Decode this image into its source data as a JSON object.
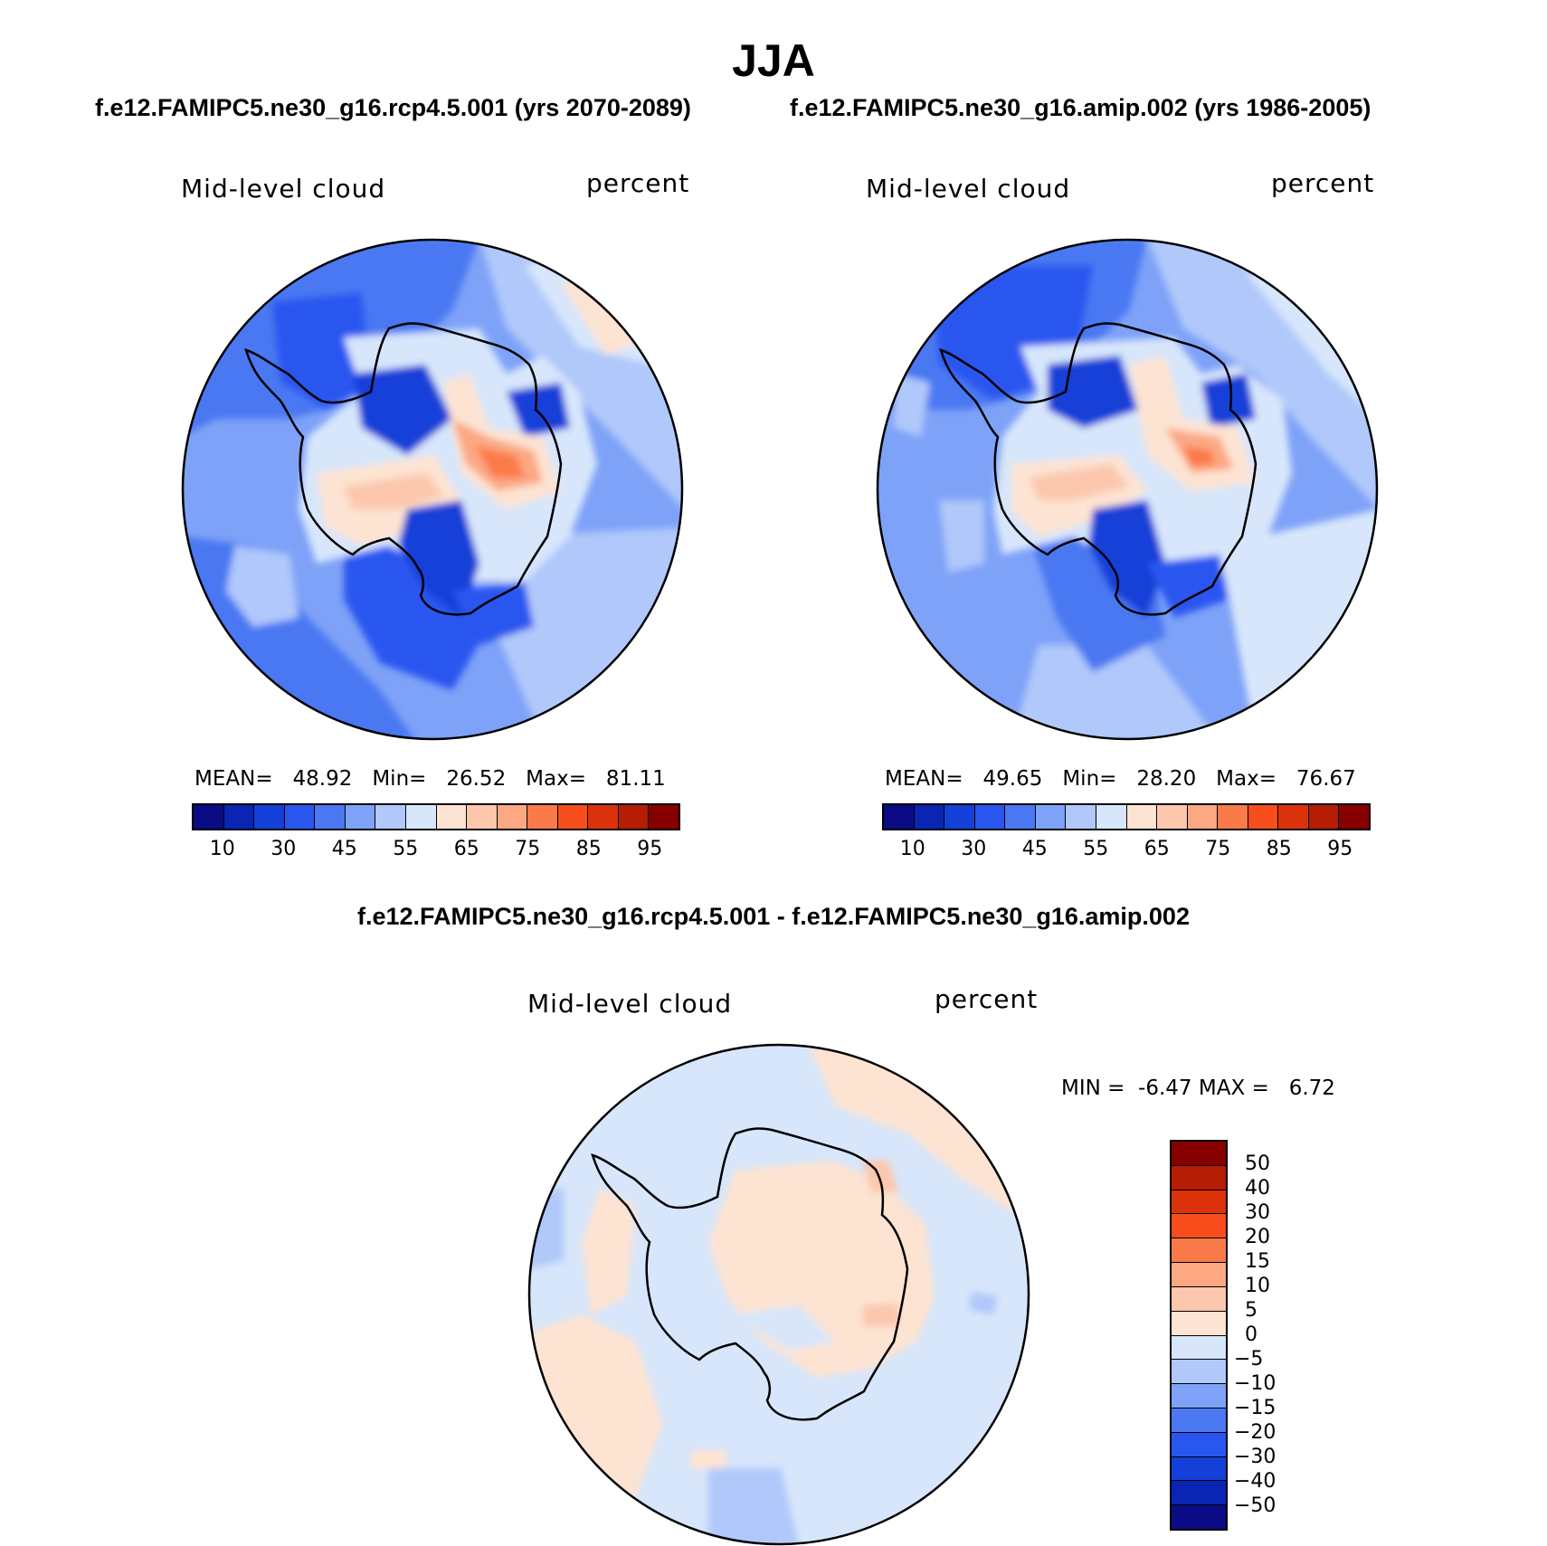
{
  "title": "JJA",
  "panels": {
    "left": {
      "case_title": "f.e12.FAMIPC5.ne30_g16.rcp4.5.001 (yrs 2070-2089)",
      "variable": "Mid-level cloud",
      "units": "percent",
      "stats": {
        "mean_label": "MEAN=",
        "mean": "48.92",
        "min_label": "Min=",
        "min": "26.52",
        "max_label": "Max=",
        "max": "81.11"
      }
    },
    "right": {
      "case_title": "f.e12.FAMIPC5.ne30_g16.amip.002 (yrs 1986-2005)",
      "variable": "Mid-level cloud",
      "units": "percent",
      "stats": {
        "mean_label": "MEAN=",
        "mean": "49.65",
        "min_label": "Min=",
        "min": "28.20",
        "max_label": "Max=",
        "max": "76.67"
      }
    },
    "diff": {
      "case_title": "f.e12.FAMIPC5.ne30_g16.rcp4.5.001 - f.e12.FAMIPC5.ne30_g16.amip.002",
      "variable": "Mid-level cloud",
      "units": "percent",
      "stats": {
        "min_label": "MIN =",
        "min": "-6.47",
        "max_label": "MAX =",
        "max": "6.72"
      }
    }
  },
  "colorbar_main": {
    "colors": [
      "#0b0b85",
      "#0a24b4",
      "#1240d8",
      "#2a56f0",
      "#4a78f2",
      "#7ea2f8",
      "#b0c8fa",
      "#d7e6fb",
      "#fde3d2",
      "#fcc7ad",
      "#fba883",
      "#fb7a4a",
      "#f84d1d",
      "#dc320c",
      "#b61d05",
      "#870000"
    ],
    "tick_labels": [
      "10",
      "30",
      "45",
      "55",
      "65",
      "75",
      "85",
      "95"
    ]
  },
  "colorbar_diff": {
    "colors": [
      "#870000",
      "#b61d05",
      "#dc320c",
      "#f84d1d",
      "#fb7a4a",
      "#fba883",
      "#fcc7ad",
      "#fde3d2",
      "#d7e6fb",
      "#b0c8fa",
      "#7ea2f8",
      "#4a78f2",
      "#2a56f0",
      "#1240d8",
      "#0a24b4",
      "#0b0b85"
    ],
    "tick_labels": [
      "50",
      "40",
      "30",
      "20",
      "15",
      "10",
      "5",
      "0",
      "−5",
      "−10",
      "−15",
      "−20",
      "−30",
      "−40",
      "−50"
    ]
  }
}
